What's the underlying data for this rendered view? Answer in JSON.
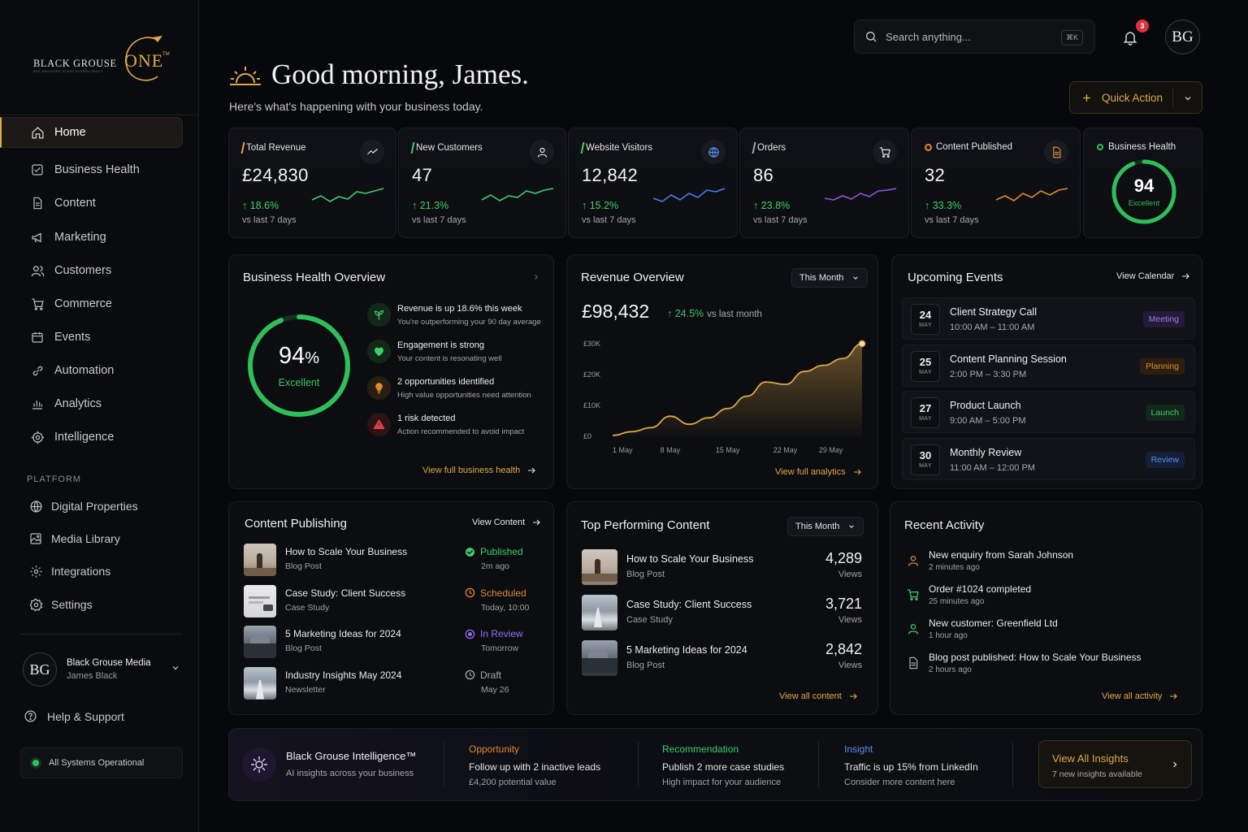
{
  "brand": {
    "word1": "BLACK GROUSE",
    "word2": "ONE",
    "tm": "TM",
    "tagline": "BEE ADVISORY ASSET CONSULTANCY"
  },
  "sidebar": {
    "items": [
      {
        "label": "Home",
        "icon": "home-icon",
        "active": true
      },
      {
        "label": "Business Health",
        "icon": "health-icon"
      },
      {
        "label": "Content",
        "icon": "document-icon"
      },
      {
        "label": "Marketing",
        "icon": "megaphone-icon"
      },
      {
        "label": "Customers",
        "icon": "users-icon"
      },
      {
        "label": "Commerce",
        "icon": "cart-icon"
      },
      {
        "label": "Events",
        "icon": "calendar-icon"
      },
      {
        "label": "Automation",
        "icon": "link-icon"
      },
      {
        "label": "Analytics",
        "icon": "bar-chart-icon"
      },
      {
        "label": "Intelligence",
        "icon": "target-icon"
      }
    ],
    "platform_label": "PLATFORM",
    "platform_items": [
      {
        "label": "Digital Properties",
        "icon": "globe-icon"
      },
      {
        "label": "Media Library",
        "icon": "image-icon"
      },
      {
        "label": "Integrations",
        "icon": "puzzle-icon"
      },
      {
        "label": "Settings",
        "icon": "gear-icon"
      }
    ],
    "account": {
      "initials": "BG",
      "name": "Black Grouse Media",
      "user": "James Black"
    },
    "help_label": "Help & Support",
    "status_label": "All Systems Operational"
  },
  "header": {
    "search_placeholder": "Search anything...",
    "search_shortcut": "⌘K",
    "notifications_count": "3",
    "avatar_initials": "BG",
    "greeting": "Good morning, James.",
    "subtitle": "Here's what's happening with your business today.",
    "quick_action_label": "Quick Action"
  },
  "kpis": [
    {
      "title": "Total Revenue",
      "value": "£24,830",
      "change": "↑ 18.6%",
      "sub": "vs last 7 days",
      "color": "#e0a949",
      "line": "#3dd16a",
      "icon": "trend-icon"
    },
    {
      "title": "New Customers",
      "value": "47",
      "change": "↑ 21.3%",
      "sub": "vs last 7 days",
      "color": "#3dd16a",
      "line": "#3dd16a",
      "icon": "user-icon"
    },
    {
      "title": "Website Visitors",
      "value": "12,842",
      "change": "↑ 15.2%",
      "sub": "vs last 7 days",
      "color": "#3dd16a",
      "line": "#4b7cf0",
      "icon": "globe-icon"
    },
    {
      "title": "Orders",
      "value": "86",
      "change": "↑ 23.8%",
      "sub": "vs last 7 days",
      "color": "#a9a9ae",
      "line": "#9b51e0",
      "icon": "cart-icon"
    },
    {
      "title": "Content Published",
      "value": "32",
      "change": "↑ 33.3%",
      "sub": "vs last 7 days",
      "color": "#e08a30",
      "line": "#e08a30",
      "icon": "document-icon"
    }
  ],
  "health_card": {
    "title": "Business Health",
    "score": "94",
    "label": "Excellent",
    "fraction": 0.94
  },
  "business_health_overview": {
    "title": "Business Health Overview",
    "score": "94",
    "unit": "%",
    "label": "Excellent",
    "fraction": 0.94,
    "items": [
      {
        "title": "Revenue is up 18.6% this week",
        "desc": "You're outperforming your 90 day average",
        "icon": "sprout-icon",
        "color": "#3dd16a",
        "bg": "#14281a"
      },
      {
        "title": "Engagement is strong",
        "desc": "Your content is resonating well",
        "icon": "heart-icon",
        "color": "#3dd16a",
        "bg": "#14281a"
      },
      {
        "title": "2 opportunities identified",
        "desc": "High value opportunities need attention",
        "icon": "lightbulb-icon",
        "color": "#e08a30",
        "bg": "#2a1e12"
      },
      {
        "title": "1 risk detected",
        "desc": "Action recommended to avoid impact",
        "icon": "warning-icon",
        "color": "#e0424b",
        "bg": "#2a1416"
      }
    ],
    "link": "View full business health"
  },
  "revenue_overview": {
    "title": "Revenue Overview",
    "period": "This Month",
    "value": "£98,432",
    "change": "↑ 24.5%",
    "change_sub": "vs last month",
    "link": "View full analytics"
  },
  "chart_data": {
    "type": "area",
    "x": [
      "1 May",
      "3 May",
      "5 May",
      "8 May",
      "10 May",
      "12 May",
      "15 May",
      "18 May",
      "20 May",
      "22 May",
      "25 May",
      "27 May",
      "29 May",
      "31 May"
    ],
    "xticks": [
      "1 May",
      "8 May",
      "15 May",
      "22 May",
      "29 May"
    ],
    "yticks": [
      "£0",
      "£10K",
      "£20K",
      "£30K"
    ],
    "series": [
      {
        "values": [
          300,
          1500,
          2800,
          6500,
          3900,
          6000,
          9000,
          13000,
          17600,
          16800,
          21000,
          23000,
          25200,
          30000
        ]
      }
    ],
    "ylim": [
      0,
      30000
    ],
    "color": "#e0a949"
  },
  "events": {
    "title": "Upcoming Events",
    "link": "View Calendar",
    "items": [
      {
        "day": "24",
        "month": "MAY",
        "title": "Client Strategy Call",
        "time": "10:00 AM – 11:00 AM",
        "tag": "Meeting",
        "tag_color": "#9b7cf0",
        "tag_bg": "#221c38"
      },
      {
        "day": "25",
        "month": "MAY",
        "title": "Content Planning Session",
        "time": "2:00 PM – 3:30 PM",
        "tag": "Planning",
        "tag_color": "#e08a30",
        "tag_bg": "#2c1f12"
      },
      {
        "day": "27",
        "month": "MAY",
        "title": "Product Launch",
        "time": "9:00 AM – 5:00 PM",
        "tag": "Launch",
        "tag_color": "#3dd16a",
        "tag_bg": "#13281a"
      },
      {
        "day": "30",
        "month": "MAY",
        "title": "Monthly Review",
        "time": "11:00 AM – 12:00 PM",
        "tag": "Review",
        "tag_color": "#5b8cf0",
        "tag_bg": "#152038"
      }
    ]
  },
  "content_publishing": {
    "title": "Content Publishing",
    "link": "View Content",
    "items": [
      {
        "title": "How to Scale Your Business",
        "type": "Blog Post",
        "status": "Published",
        "when": "2m ago",
        "color": "#3dd16a",
        "icon": "check-icon"
      },
      {
        "title": "Case Study: Client Success",
        "type": "Case Study",
        "status": "Scheduled",
        "when": "Today, 10:00",
        "color": "#e08a30",
        "icon": "clock-icon"
      },
      {
        "title": "5 Marketing Ideas for 2024",
        "type": "Blog Post",
        "status": "In Review",
        "when": "Tomorrow",
        "color": "#9b6cf0",
        "icon": "review-icon"
      },
      {
        "title": "Industry Insights May 2024",
        "type": "Newsletter",
        "status": "Draft",
        "when": "May 26",
        "color": "#a9a9ae",
        "icon": "draft-icon"
      }
    ]
  },
  "top_content": {
    "title": "Top Performing Content",
    "period": "This Month",
    "link": "View all content",
    "items": [
      {
        "title": "How to Scale Your Business",
        "type": "Blog Post",
        "views": "4,289",
        "views_label": "Views"
      },
      {
        "title": "Case Study: Client Success",
        "type": "Case Study",
        "views": "3,721",
        "views_label": "Views"
      },
      {
        "title": "5 Marketing Ideas for 2024",
        "type": "Blog Post",
        "views": "2,842",
        "views_label": "Views"
      }
    ]
  },
  "recent_activity": {
    "title": "Recent Activity",
    "link": "View all activity",
    "items": [
      {
        "title": "New enquiry from Sarah Johnson",
        "time": "2 minutes ago",
        "icon": "user-icon",
        "color": "#e08a30"
      },
      {
        "title": "Order #1024 completed",
        "time": "25 minutes ago",
        "icon": "cart-icon",
        "color": "#3dd16a"
      },
      {
        "title": "New customer: Greenfield Ltd",
        "time": "1 hour ago",
        "icon": "user-icon",
        "color": "#3dd16a"
      },
      {
        "title": "Blog post published: How to Scale Your Business",
        "time": "2 hours ago",
        "icon": "document-icon",
        "color": "#a9a9ae"
      }
    ]
  },
  "intelligence": {
    "title": "Black Grouse Intelligence™",
    "sub": "AI insights across your business",
    "cols": [
      {
        "heading": "Opportunity",
        "line1": "Follow up with 2 inactive leads",
        "line2": "£4,200 potential value",
        "color": "#e08a30"
      },
      {
        "heading": "Recommendation",
        "line1": "Publish 2 more case studies",
        "line2": "High impact for your audience",
        "color": "#3dd16a"
      },
      {
        "heading": "Insight",
        "line1": "Traffic is up 15% from LinkedIn",
        "line2": "Consider more content here",
        "color": "#5b8cf0"
      }
    ],
    "button": "View All Insights",
    "button_sub": "7 new insights available"
  }
}
